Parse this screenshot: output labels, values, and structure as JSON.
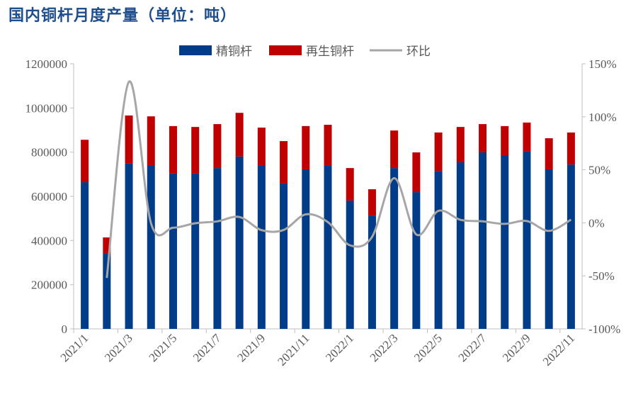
{
  "title": "国内铜杆月度产量（单位：吨）",
  "colors": {
    "refined": "#003c87",
    "recycled": "#c00000",
    "mom": "#a6a6a6"
  },
  "chart_data": {
    "type": "bar",
    "stacked": true,
    "title": "国内铜杆月度产量（单位：吨）",
    "categories": [
      "2021/1",
      "2021/2",
      "2021/3",
      "2021/4",
      "2021/5",
      "2021/6",
      "2021/7",
      "2021/8",
      "2021/9",
      "2021/10",
      "2021/11",
      "2021/12",
      "2022/1",
      "2022/2",
      "2022/3",
      "2022/4",
      "2022/5",
      "2022/6",
      "2022/7",
      "2022/8",
      "2022/9",
      "2022/10",
      "2022/11"
    ],
    "x_tick_labels": [
      "2021/1",
      "2021/3",
      "2021/5",
      "2021/7",
      "2021/9",
      "2021/11",
      "2022/1",
      "2022/3",
      "2022/5",
      "2022/7",
      "2022/9",
      "2022/11"
    ],
    "series": [
      {
        "name": "精铜杆",
        "type": "bar",
        "values": [
          664000,
          343000,
          748000,
          741000,
          703000,
          703000,
          728000,
          780000,
          741000,
          658000,
          722000,
          741000,
          581000,
          513000,
          728000,
          619000,
          715000,
          754000,
          799000,
          786000,
          805000,
          722000,
          744000
        ]
      },
      {
        "name": "再生铜杆",
        "type": "bar",
        "values": [
          192000,
          71000,
          218000,
          221000,
          215000,
          211000,
          199000,
          198000,
          170000,
          192000,
          196000,
          183000,
          147000,
          119000,
          170000,
          180000,
          174000,
          160000,
          128000,
          132000,
          129000,
          141000,
          145000
        ]
      },
      {
        "name": "环比",
        "type": "line",
        "axis": "right",
        "values": [
          null,
          -52,
          133,
          -0.4,
          -4.6,
          -0.4,
          1.4,
          5.5,
          -6.9,
          -6.7,
          8.0,
          0.7,
          -21.2,
          -13.2,
          42.1,
          -11.0,
          11.3,
          2.8,
          1.4,
          -1.0,
          1.7,
          -7.6,
          3.0
        ]
      }
    ],
    "y_left": {
      "range": [
        0,
        1200000
      ],
      "ticks": [
        "0",
        "200000",
        "400000",
        "600000",
        "800000",
        "1000000",
        "1200000"
      ]
    },
    "y_right": {
      "range": [
        -100,
        150
      ],
      "unit": "%",
      "ticks": [
        "-100%",
        "-50%",
        "0%",
        "50%",
        "100%",
        "150%"
      ]
    },
    "legend": {
      "placement": "top-center",
      "items": [
        "精铜杆",
        "再生铜杆",
        "环比"
      ]
    },
    "grid": false
  }
}
